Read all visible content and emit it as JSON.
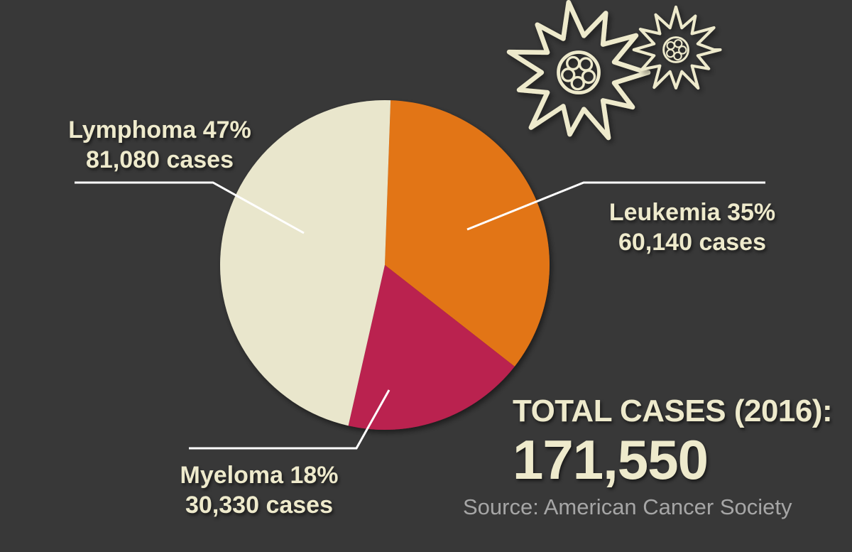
{
  "chart_data": {
    "type": "pie",
    "slices": [
      {
        "name": "Lymphoma",
        "percent": 47,
        "cases": 81080,
        "line1": "Lymphoma 47%",
        "line2": "81,080 cases",
        "color": "#e9e6cc"
      },
      {
        "name": "Leukemia",
        "percent": 35,
        "cases": 60140,
        "line1": "Leukemia 35%",
        "line2": "60,140 cases",
        "color": "#e27417"
      },
      {
        "name": "Myeloma",
        "percent": 18,
        "cases": 30330,
        "line1": "Myeloma 18%",
        "line2": "30,330 cases",
        "color": "#ba2050"
      }
    ],
    "start_slice": "Leukemia",
    "direction": "clockwise",
    "total_label": "TOTAL CASES (2016):",
    "total_value": "171,550",
    "source": "Source: American Cancer Society"
  },
  "decoration": {
    "icon": "blood-cell-icon",
    "count": 2,
    "color": "#eeeacc"
  }
}
